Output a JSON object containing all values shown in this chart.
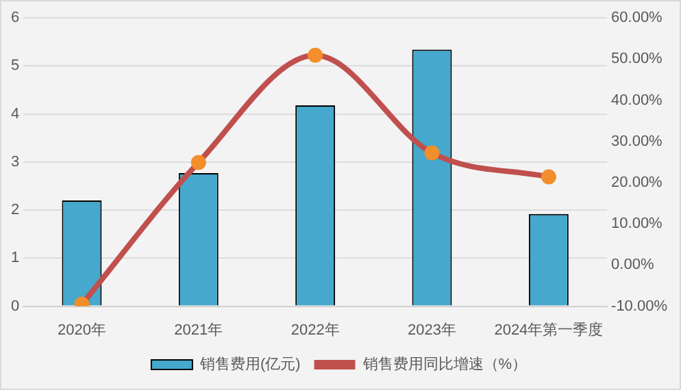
{
  "chart_data": {
    "type": "bar",
    "categories": [
      "2020年",
      "2021年",
      "2022年",
      "2023年",
      "2024年第一季度"
    ],
    "series": [
      {
        "name": "销售费用(亿元)",
        "color": "#45a8cc",
        "values": [
          2.2,
          2.77,
          4.18,
          5.34,
          1.92
        ]
      },
      {
        "name": "销售费用同比增速（%）",
        "type": "line",
        "axis": "y2",
        "color": "#c0504d",
        "marker": "circle",
        "values": [
          -9.5,
          24.9,
          50.9,
          27.2,
          21.4
        ]
      }
    ],
    "ylim": [
      0,
      6
    ],
    "yticks": [
      0,
      1,
      2,
      3,
      4,
      5,
      6
    ],
    "y2lim": [
      -10,
      60
    ],
    "y2ticks": [
      {
        "value": -10,
        "label": "-10.00%"
      },
      {
        "value": 0,
        "label": "0.00%"
      },
      {
        "value": 10,
        "label": "10.00%"
      },
      {
        "value": 20,
        "label": "20.00%"
      },
      {
        "value": 30,
        "label": "30.00%"
      },
      {
        "value": 40,
        "label": "40.00%"
      },
      {
        "value": 50,
        "label": "50.00%"
      },
      {
        "value": 60,
        "label": "60.00%"
      }
    ],
    "grid": "y",
    "legend": "bottom"
  }
}
